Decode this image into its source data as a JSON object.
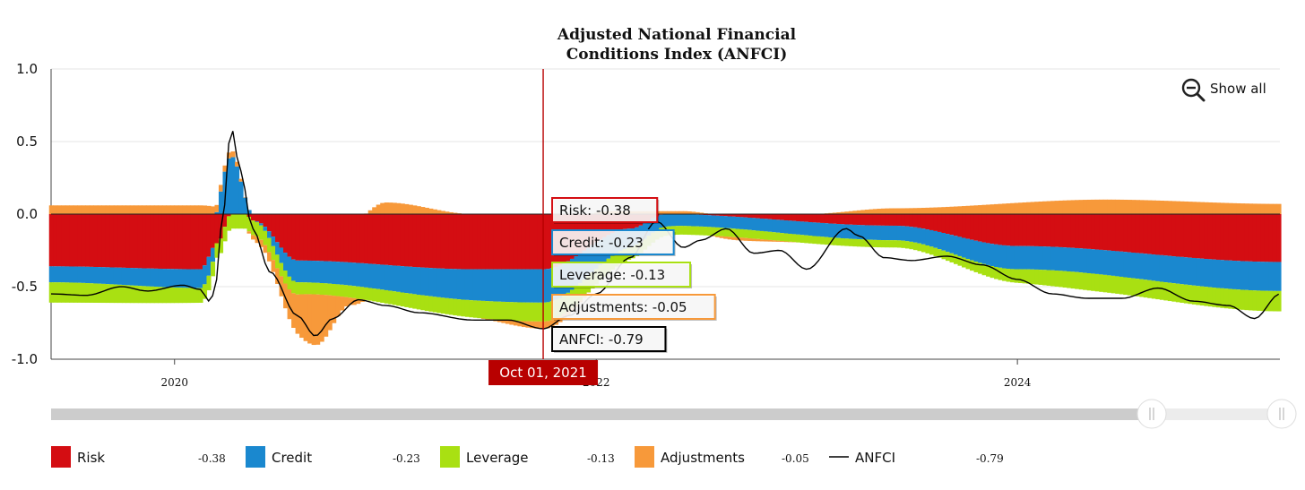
{
  "chart_data": {
    "type": "stacked-bar-with-line",
    "title_lines": [
      "Adjusted National Financial",
      "Conditions Index (ANFCI)"
    ],
    "ylim": [
      -1.0,
      1.0
    ],
    "yticks": [
      "1.0",
      "0.5",
      "0.0",
      "-0.5",
      "-1.0"
    ],
    "ytick_values": [
      1.0,
      0.5,
      0.0,
      -0.5,
      -1.0
    ],
    "xticks": [
      {
        "label": "2020",
        "date": "2020-01-01"
      },
      {
        "label": "2022",
        "date": "2022-01-01"
      },
      {
        "label": "2024",
        "date": "2024-01-01"
      }
    ],
    "x_range": [
      "2019-06-01",
      "2025-03-31"
    ],
    "grid": true,
    "colors": {
      "Risk": "#d40d12",
      "Credit": "#1a88cf",
      "Leverage": "#a9e012",
      "Adjustments": "#f7993a",
      "ANFCI": "#000000",
      "crosshair": "#b80000"
    },
    "series_names": [
      "Risk",
      "Credit",
      "Leverage",
      "Adjustments",
      "ANFCI"
    ],
    "anfci_keypoints": [
      [
        "2019-06-01",
        -0.55
      ],
      [
        "2019-08-01",
        -0.56
      ],
      [
        "2019-10-01",
        -0.5
      ],
      [
        "2019-11-15",
        -0.53
      ],
      [
        "2020-01-15",
        -0.49
      ],
      [
        "2020-02-15",
        -0.52
      ],
      [
        "2020-03-01",
        -0.6
      ],
      [
        "2020-03-10",
        -0.55
      ],
      [
        "2020-03-24",
        -0.05
      ],
      [
        "2020-04-08",
        0.6
      ],
      [
        "2020-04-24",
        0.3
      ],
      [
        "2020-05-15",
        -0.1
      ],
      [
        "2020-06-15",
        -0.4
      ],
      [
        "2020-08-01",
        -0.7
      ],
      [
        "2020-09-01",
        -0.84
      ],
      [
        "2020-10-01",
        -0.72
      ],
      [
        "2020-11-15",
        -0.59
      ],
      [
        "2021-01-01",
        -0.63
      ],
      [
        "2021-03-01",
        -0.68
      ],
      [
        "2021-06-01",
        -0.73
      ],
      [
        "2021-08-01",
        -0.73
      ],
      [
        "2021-10-01",
        -0.79
      ],
      [
        "2021-11-15",
        -0.7
      ],
      [
        "2022-01-01",
        -0.55
      ],
      [
        "2022-03-01",
        -0.3
      ],
      [
        "2022-04-15",
        -0.05
      ],
      [
        "2022-06-01",
        -0.23
      ],
      [
        "2022-07-01",
        -0.18
      ],
      [
        "2022-08-15",
        -0.1
      ],
      [
        "2022-10-01",
        -0.27
      ],
      [
        "2022-11-15",
        -0.25
      ],
      [
        "2023-01-01",
        -0.38
      ],
      [
        "2023-03-10",
        -0.1
      ],
      [
        "2023-04-01",
        -0.15
      ],
      [
        "2023-05-15",
        -0.3
      ],
      [
        "2023-07-01",
        -0.32
      ],
      [
        "2023-09-01",
        -0.29
      ],
      [
        "2023-11-01",
        -0.35
      ],
      [
        "2024-01-01",
        -0.45
      ],
      [
        "2024-03-01",
        -0.55
      ],
      [
        "2024-05-01",
        -0.58
      ],
      [
        "2024-07-01",
        -0.58
      ],
      [
        "2024-09-01",
        -0.51
      ],
      [
        "2024-11-01",
        -0.6
      ],
      [
        "2025-01-01",
        -0.63
      ],
      [
        "2025-02-15",
        -0.72
      ],
      [
        "2025-03-31",
        -0.55
      ]
    ],
    "risk_keypoints": [
      [
        "2019-06-01",
        -0.36
      ],
      [
        "2020-02-15",
        -0.38
      ],
      [
        "2020-03-15",
        -0.2
      ],
      [
        "2020-04-08",
        0.0
      ],
      [
        "2020-05-01",
        0.0
      ],
      [
        "2020-05-20",
        -0.05
      ],
      [
        "2020-08-01",
        -0.32
      ],
      [
        "2021-06-01",
        -0.38
      ],
      [
        "2021-10-01",
        -0.38
      ],
      [
        "2022-03-01",
        -0.1
      ],
      [
        "2022-05-01",
        0.0
      ],
      [
        "2023-06-01",
        -0.08
      ],
      [
        "2024-01-01",
        -0.22
      ],
      [
        "2025-03-31",
        -0.33
      ]
    ],
    "credit_keypoints": [
      [
        "2019-06-01",
        -0.11
      ],
      [
        "2020-03-01",
        -0.13
      ],
      [
        "2020-04-08",
        0.4
      ],
      [
        "2020-05-15",
        0.0
      ],
      [
        "2020-08-01",
        -0.15
      ],
      [
        "2021-10-01",
        -0.23
      ],
      [
        "2022-06-01",
        -0.08
      ],
      [
        "2023-06-01",
        -0.1
      ],
      [
        "2024-01-01",
        -0.16
      ],
      [
        "2025-03-31",
        -0.2
      ]
    ],
    "leverage_keypoints": [
      [
        "2019-06-01",
        -0.14
      ],
      [
        "2020-03-15",
        -0.1
      ],
      [
        "2020-05-15",
        -0.1
      ],
      [
        "2020-09-01",
        -0.08
      ],
      [
        "2021-10-01",
        -0.13
      ],
      [
        "2022-06-01",
        -0.06
      ],
      [
        "2023-06-01",
        -0.05
      ],
      [
        "2024-06-01",
        -0.12
      ],
      [
        "2025-03-31",
        -0.14
      ]
    ],
    "adjustments_keypoints": [
      [
        "2019-06-01",
        0.06
      ],
      [
        "2020-02-15",
        0.06
      ],
      [
        "2020-04-08",
        0.04
      ],
      [
        "2020-06-01",
        -0.05
      ],
      [
        "2020-09-01",
        -0.35
      ],
      [
        "2020-11-01",
        -0.05
      ],
      [
        "2021-01-01",
        0.08
      ],
      [
        "2021-06-01",
        0.0
      ],
      [
        "2021-10-01",
        -0.05
      ],
      [
        "2022-02-01",
        0.02
      ],
      [
        "2022-06-01",
        0.02
      ],
      [
        "2022-09-01",
        -0.02
      ],
      [
        "2023-01-01",
        0.0
      ],
      [
        "2023-06-01",
        0.04
      ],
      [
        "2024-06-01",
        0.1
      ],
      [
        "2025-03-31",
        0.07
      ]
    ],
    "crosshair": {
      "date": "2021-10-01",
      "label": "Oct 01, 2021"
    },
    "tooltips": [
      {
        "series": "Risk",
        "text": "Risk: -0.38",
        "value": -0.38
      },
      {
        "series": "Credit",
        "text": "Credit: -0.23",
        "value": -0.23
      },
      {
        "series": "Leverage",
        "text": "Leverage: -0.13",
        "value": -0.13
      },
      {
        "series": "Adjustments",
        "text": "Adjustments: -0.05",
        "value": -0.05
      },
      {
        "series": "ANFCI",
        "text": "ANFCI: -0.79",
        "value": -0.79
      }
    ],
    "legend": [
      {
        "name": "Risk",
        "value": "-0.38",
        "color": "#d40d12",
        "kind": "swatch"
      },
      {
        "name": "Credit",
        "value": "-0.23",
        "color": "#1a88cf",
        "kind": "swatch"
      },
      {
        "name": "Leverage",
        "value": "-0.13",
        "color": "#a9e012",
        "kind": "swatch"
      },
      {
        "name": "Adjustments",
        "value": "-0.05",
        "color": "#f7993a",
        "kind": "swatch"
      },
      {
        "name": "ANFCI",
        "value": "-0.79",
        "color": "#000000",
        "kind": "line"
      }
    ]
  },
  "controls": {
    "zoom_label": "Show all",
    "zoom_icon": "zoom-out-icon",
    "navigator_handle_icon": "grip-icon"
  }
}
